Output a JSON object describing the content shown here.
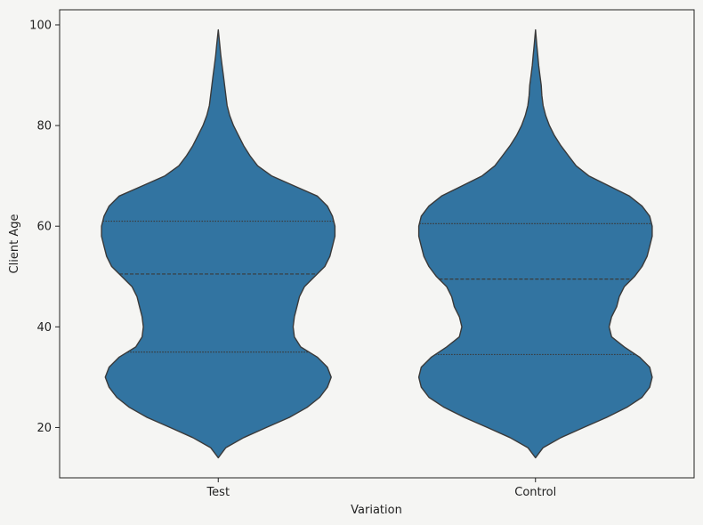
{
  "chart_data": {
    "type": "violin",
    "title": "",
    "xlabel": "Variation",
    "ylabel": "Client Age",
    "ylim": [
      10,
      103
    ],
    "yticks": [
      20,
      40,
      60,
      80,
      100
    ],
    "categories": [
      "Test",
      "Control"
    ],
    "color": "#3274a1",
    "background": "#f5f5f3",
    "series": [
      {
        "name": "Test",
        "min": 14,
        "max": 99,
        "quartiles": [
          35,
          50.5,
          61
        ],
        "density_profile": [
          [
            14,
            0.0
          ],
          [
            16,
            0.06
          ],
          [
            18,
            0.2
          ],
          [
            20,
            0.38
          ],
          [
            22,
            0.56
          ],
          [
            24,
            0.7
          ],
          [
            26,
            0.8
          ],
          [
            28,
            0.86
          ],
          [
            30,
            0.89
          ],
          [
            32,
            0.86
          ],
          [
            34,
            0.78
          ],
          [
            36,
            0.65
          ],
          [
            38,
            0.6
          ],
          [
            40,
            0.59
          ],
          [
            42,
            0.6
          ],
          [
            44,
            0.62
          ],
          [
            46,
            0.64
          ],
          [
            48,
            0.68
          ],
          [
            50,
            0.76
          ],
          [
            52,
            0.84
          ],
          [
            54,
            0.88
          ],
          [
            56,
            0.9
          ],
          [
            58,
            0.92
          ],
          [
            60,
            0.92
          ],
          [
            62,
            0.9
          ],
          [
            64,
            0.86
          ],
          [
            66,
            0.78
          ],
          [
            68,
            0.6
          ],
          [
            70,
            0.42
          ],
          [
            72,
            0.31
          ],
          [
            74,
            0.25
          ],
          [
            76,
            0.2
          ],
          [
            78,
            0.16
          ],
          [
            80,
            0.12
          ],
          [
            82,
            0.09
          ],
          [
            84,
            0.07
          ],
          [
            86,
            0.06
          ],
          [
            88,
            0.05
          ],
          [
            90,
            0.04
          ],
          [
            92,
            0.03
          ],
          [
            94,
            0.02
          ],
          [
            96,
            0.012
          ],
          [
            99,
            0.0
          ]
        ]
      },
      {
        "name": "Control",
        "min": 14,
        "max": 99,
        "quartiles": [
          34.5,
          49.5,
          60.5
        ],
        "density_profile": [
          [
            14,
            0.0
          ],
          [
            16,
            0.06
          ],
          [
            18,
            0.2
          ],
          [
            20,
            0.38
          ],
          [
            22,
            0.56
          ],
          [
            24,
            0.72
          ],
          [
            26,
            0.84
          ],
          [
            28,
            0.9
          ],
          [
            30,
            0.92
          ],
          [
            32,
            0.9
          ],
          [
            34,
            0.82
          ],
          [
            36,
            0.7
          ],
          [
            38,
            0.6
          ],
          [
            40,
            0.58
          ],
          [
            42,
            0.6
          ],
          [
            44,
            0.64
          ],
          [
            46,
            0.66
          ],
          [
            48,
            0.7
          ],
          [
            50,
            0.78
          ],
          [
            52,
            0.84
          ],
          [
            54,
            0.88
          ],
          [
            56,
            0.9
          ],
          [
            58,
            0.92
          ],
          [
            60,
            0.92
          ],
          [
            62,
            0.9
          ],
          [
            64,
            0.84
          ],
          [
            66,
            0.74
          ],
          [
            68,
            0.58
          ],
          [
            70,
            0.42
          ],
          [
            72,
            0.32
          ],
          [
            74,
            0.26
          ],
          [
            76,
            0.2
          ],
          [
            78,
            0.15
          ],
          [
            80,
            0.11
          ],
          [
            82,
            0.08
          ],
          [
            84,
            0.06
          ],
          [
            86,
            0.05
          ],
          [
            88,
            0.045
          ],
          [
            90,
            0.035
          ],
          [
            92,
            0.025
          ],
          [
            94,
            0.018
          ],
          [
            96,
            0.01
          ],
          [
            99,
            0.0
          ]
        ]
      }
    ]
  }
}
